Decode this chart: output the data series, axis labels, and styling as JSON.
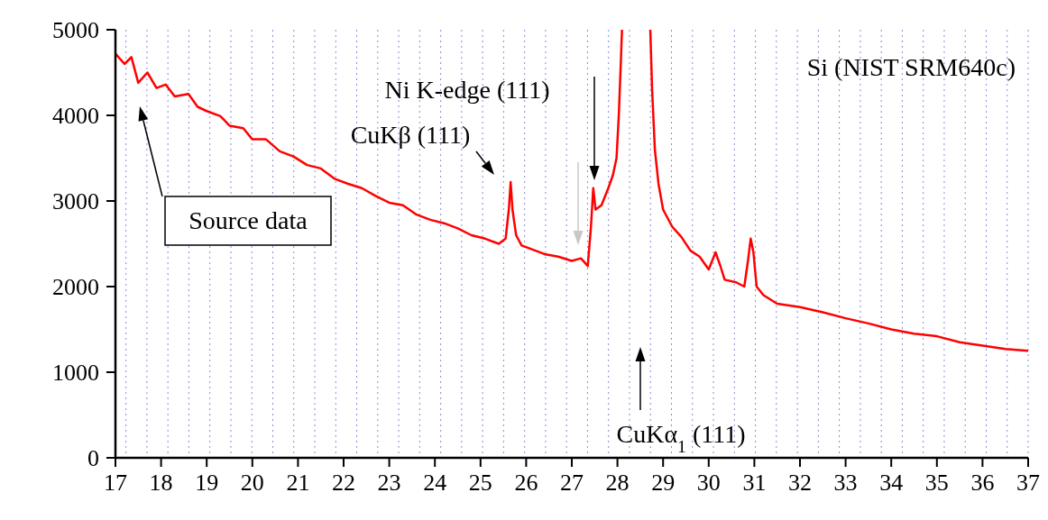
{
  "chart_data": {
    "type": "line",
    "grid": "x",
    "marker": "none",
    "line_style": "solid",
    "xlim": [
      17,
      37
    ],
    "ylim": [
      0,
      5000
    ],
    "xticks": [
      17,
      18,
      19,
      20,
      21,
      22,
      23,
      24,
      25,
      26,
      27,
      28,
      29,
      30,
      31,
      32,
      33,
      34,
      35,
      36,
      37
    ],
    "yticks": [
      0,
      1000,
      2000,
      3000,
      4000,
      5000
    ],
    "x": [
      17.0,
      17.2,
      17.35,
      17.5,
      17.7,
      17.9,
      18.1,
      18.3,
      18.6,
      18.8,
      19.0,
      19.3,
      19.5,
      19.8,
      20.0,
      20.3,
      20.6,
      20.9,
      21.2,
      21.5,
      21.8,
      22.1,
      22.4,
      22.7,
      23.0,
      23.3,
      23.6,
      23.9,
      24.2,
      24.5,
      24.8,
      25.1,
      25.4,
      25.55,
      25.62,
      25.66,
      25.7,
      25.78,
      25.9,
      26.1,
      26.4,
      26.7,
      27.0,
      27.2,
      27.35,
      27.42,
      27.47,
      27.52,
      27.65,
      27.8,
      27.9,
      27.98,
      28.03,
      28.08,
      28.1,
      28.4,
      28.72,
      28.76,
      28.82,
      28.9,
      29.0,
      29.2,
      29.4,
      29.6,
      29.8,
      30.0,
      30.15,
      30.25,
      30.35,
      30.6,
      30.78,
      30.86,
      30.92,
      30.98,
      31.05,
      31.2,
      31.5,
      32.0,
      32.5,
      33.0,
      33.5,
      34.0,
      34.5,
      35.0,
      35.5,
      36.0,
      36.5,
      37.0
    ],
    "series": [
      {
        "color": "#ff0000",
        "values": [
          4720,
          4600,
          4680,
          4380,
          4500,
          4320,
          4360,
          4220,
          4250,
          4100,
          4050,
          3990,
          3880,
          3850,
          3720,
          3720,
          3580,
          3520,
          3420,
          3380,
          3260,
          3200,
          3150,
          3060,
          2980,
          2950,
          2840,
          2780,
          2740,
          2680,
          2600,
          2560,
          2500,
          2560,
          2900,
          3220,
          2900,
          2600,
          2480,
          2440,
          2380,
          2350,
          2300,
          2330,
          2240,
          2700,
          3150,
          2900,
          2950,
          3150,
          3300,
          3500,
          4000,
          4700,
          5000,
          null,
          5000,
          4300,
          3600,
          3200,
          2900,
          2700,
          2580,
          2420,
          2350,
          2200,
          2400,
          2250,
          2080,
          2050,
          2000,
          2300,
          2560,
          2400,
          2000,
          1900,
          1800,
          1760,
          1700,
          1630,
          1570,
          1500,
          1450,
          1420,
          1350,
          1310,
          1270,
          1250
        ]
      }
    ],
    "annotations": [
      "Si (NIST SRM640c)",
      "Source data",
      "CuKβ (111)",
      "Ni K-edge (111)",
      "CuKα$_{1}$ (111)"
    ]
  }
}
